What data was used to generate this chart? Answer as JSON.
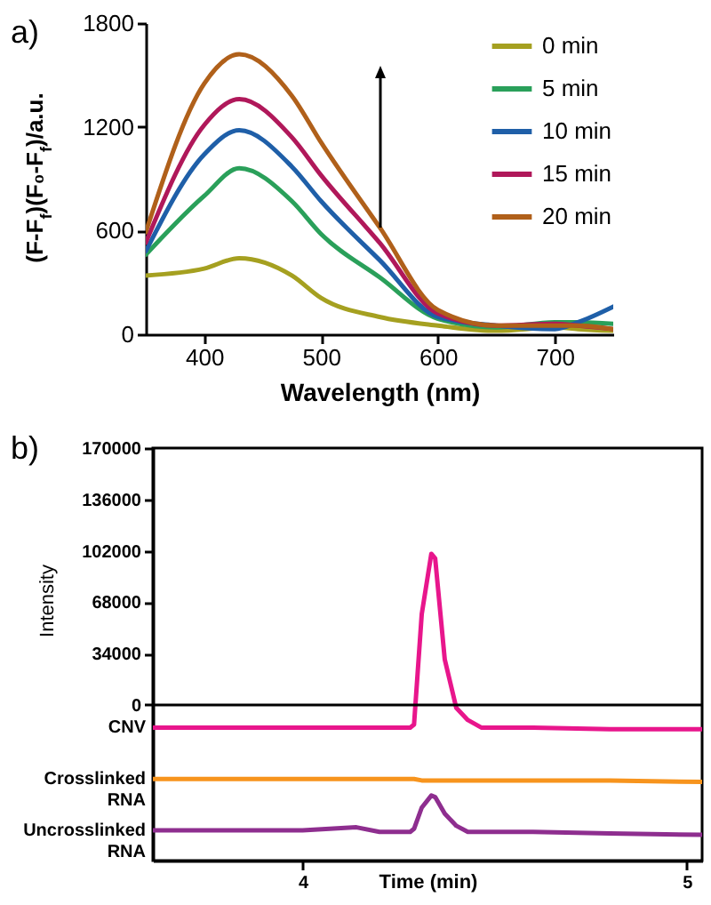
{
  "chart_data": [
    {
      "type": "line",
      "annotations": [
        "a)"
      ],
      "xlabel": "Wavelength (nm)",
      "ylabel": "(F-F$_{f}$)(F₀-F$_{f}$)/a.u.",
      "x": [
        350,
        400,
        430,
        475,
        500,
        550,
        600,
        650,
        700,
        720,
        750
      ],
      "series": [
        {
          "name": "0 min",
          "color": "#a5a020",
          "values": [
            340,
            380,
            440,
            340,
            210,
            100,
            50,
            20,
            40,
            30,
            20
          ]
        },
        {
          "name": "5 min",
          "color": "#2aa05a",
          "values": [
            460,
            800,
            960,
            770,
            580,
            330,
            90,
            40,
            70,
            70,
            60
          ]
        },
        {
          "name": "10 min",
          "color": "#1f5fa8",
          "values": [
            480,
            1040,
            1180,
            970,
            770,
            430,
            100,
            50,
            30,
            70,
            160
          ]
        },
        {
          "name": "15 min",
          "color": "#b0185a",
          "values": [
            530,
            1210,
            1360,
            1140,
            920,
            530,
            120,
            50,
            60,
            50,
            30
          ]
        },
        {
          "name": "20 min",
          "color": "#b0601a",
          "values": [
            590,
            1450,
            1620,
            1380,
            1110,
            620,
            140,
            50,
            50,
            50,
            30
          ]
        }
      ],
      "xlim": [
        350,
        750
      ],
      "xticks": [
        400,
        500,
        600,
        700
      ],
      "ylim": [
        0,
        1800
      ],
      "yticks": [
        0,
        600,
        1200,
        1800
      ],
      "grid": false,
      "legend": "top right"
    },
    {
      "type": "line",
      "annotations": [
        "b)"
      ],
      "xlabel": "Time (min)",
      "ylabel": "Intensity",
      "x": [
        3.61,
        3.8,
        4.0,
        4.14,
        4.2,
        4.28,
        4.29,
        4.31,
        4.335,
        4.345,
        4.37,
        4.4,
        4.43,
        4.465,
        4.6,
        4.8,
        5.04
      ],
      "series": [
        {
          "name": "CNV",
          "color": "#e8168c",
          "values": [
            -15000,
            -15000,
            -15000,
            -15000,
            -15000,
            -15000,
            -13000,
            60000,
            100000,
            97000,
            30000,
            -2000,
            -10000,
            -15000,
            -15000,
            -16000,
            -16000
          ]
        },
        {
          "name": "Crosslinked RNA",
          "color": "#f7941d",
          "values": [
            -49000,
            -49000,
            -49000,
            -49000,
            -49000,
            -49000,
            -49000,
            -50000,
            -50000,
            -50000,
            -50000,
            -50000,
            -50000,
            -50000,
            -50000,
            -50000,
            -51000
          ]
        },
        {
          "name": "Uncrosslinked RNA",
          "color": "#8e2e8f",
          "values": [
            -83000,
            -83000,
            -83000,
            -81000,
            -84000,
            -84000,
            -82000,
            -68000,
            -60000,
            -61000,
            -72000,
            -80000,
            -84000,
            -84000,
            -84000,
            -85000,
            -86000
          ]
        }
      ],
      "xlim": [
        3.61,
        5.04
      ],
      "xticks": [
        4,
        5
      ],
      "ylim": [
        -103000,
        170000
      ],
      "yticks": [
        0,
        34000,
        68000,
        102000,
        136000,
        170000
      ],
      "ref_lines": [
        {
          "axis": "y",
          "value": 0,
          "color": "#000000"
        }
      ],
      "grid": false,
      "legend": false
    }
  ]
}
